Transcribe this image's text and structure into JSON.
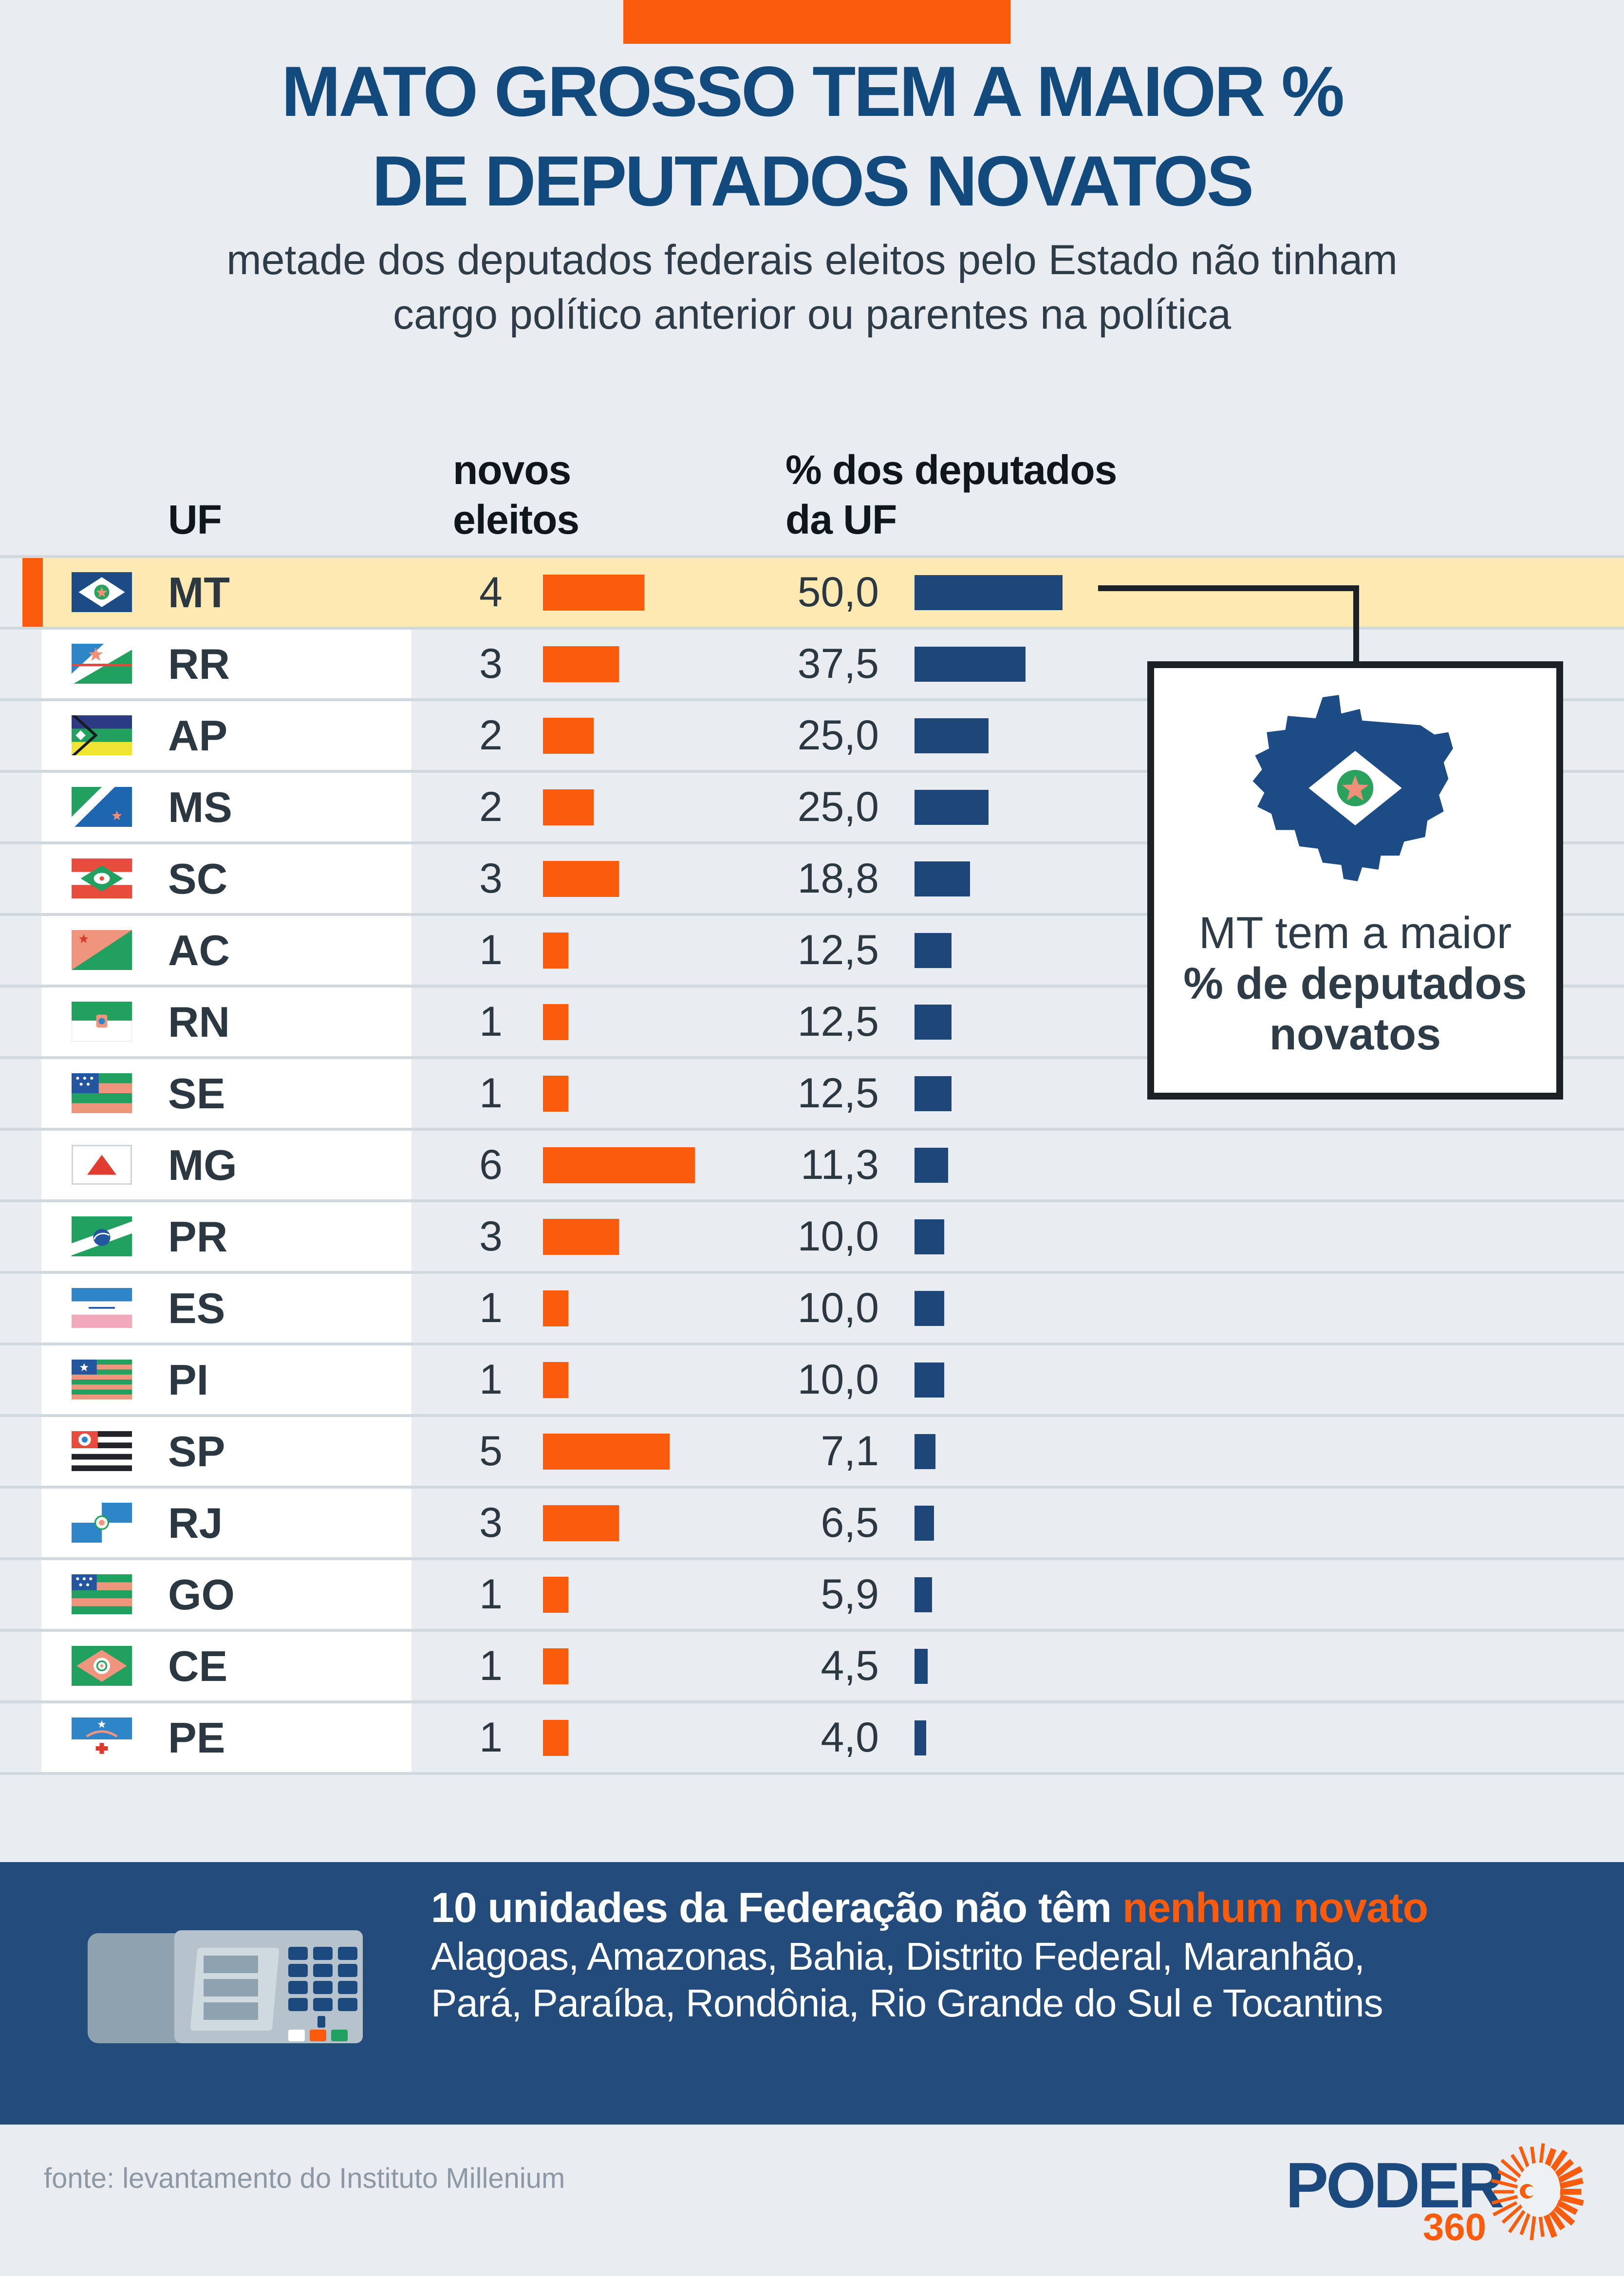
{
  "colors": {
    "accent_orange": "#fa5b0c",
    "bar_blue": "#1e4678",
    "title_blue": "#134a7d",
    "highlight_yellow": "#fee9b3",
    "banner_blue": "#234b7b",
    "divider_gray": "#d2d9de",
    "text_dark": "#2b3842"
  },
  "header": {
    "title_line1": "MATO GROSSO TEM A MAIOR %",
    "title_line2": "DE DEPUTADOS NOVATOS",
    "subtitle_line1": "metade dos deputados federais eleitos pelo Estado não tinham",
    "subtitle_line2": "cargo político anterior ou parentes na política"
  },
  "table": {
    "header": {
      "uf": "UF",
      "novos_line1": "novos",
      "novos_line2": "eleitos",
      "pct_line1": "% dos deputados",
      "pct_line2": "da UF"
    },
    "rows": [
      {
        "uf": "MT",
        "flag": "flag-mt",
        "novos": 4,
        "pct": 50.0,
        "pct_label": "50,0",
        "highlight": true
      },
      {
        "uf": "RR",
        "flag": "flag-rr",
        "novos": 3,
        "pct": 37.5,
        "pct_label": "37,5",
        "highlight": false
      },
      {
        "uf": "AP",
        "flag": "flag-ap",
        "novos": 2,
        "pct": 25.0,
        "pct_label": "25,0",
        "highlight": false
      },
      {
        "uf": "MS",
        "flag": "flag-ms",
        "novos": 2,
        "pct": 25.0,
        "pct_label": "25,0",
        "highlight": false
      },
      {
        "uf": "SC",
        "flag": "flag-sc",
        "novos": 3,
        "pct": 18.8,
        "pct_label": "18,8",
        "highlight": false
      },
      {
        "uf": "AC",
        "flag": "flag-ac",
        "novos": 1,
        "pct": 12.5,
        "pct_label": "12,5",
        "highlight": false
      },
      {
        "uf": "RN",
        "flag": "flag-rn",
        "novos": 1,
        "pct": 12.5,
        "pct_label": "12,5",
        "highlight": false
      },
      {
        "uf": "SE",
        "flag": "flag-se",
        "novos": 1,
        "pct": 12.5,
        "pct_label": "12,5",
        "highlight": false
      },
      {
        "uf": "MG",
        "flag": "flag-mg",
        "novos": 6,
        "pct": 11.3,
        "pct_label": "11,3",
        "highlight": false
      },
      {
        "uf": "PR",
        "flag": "flag-pr",
        "novos": 3,
        "pct": 10.0,
        "pct_label": "10,0",
        "highlight": false
      },
      {
        "uf": "ES",
        "flag": "flag-es",
        "novos": 1,
        "pct": 10.0,
        "pct_label": "10,0",
        "highlight": false
      },
      {
        "uf": "PI",
        "flag": "flag-pi",
        "novos": 1,
        "pct": 10.0,
        "pct_label": "10,0",
        "highlight": false
      },
      {
        "uf": "SP",
        "flag": "flag-sp",
        "novos": 5,
        "pct": 7.1,
        "pct_label": "7,1",
        "highlight": false
      },
      {
        "uf": "RJ",
        "flag": "flag-rj",
        "novos": 3,
        "pct": 6.5,
        "pct_label": "6,5",
        "highlight": false
      },
      {
        "uf": "GO",
        "flag": "flag-go",
        "novos": 1,
        "pct": 5.9,
        "pct_label": "5,9",
        "highlight": false
      },
      {
        "uf": "CE",
        "flag": "flag-ce",
        "novos": 1,
        "pct": 4.5,
        "pct_label": "4,5",
        "highlight": false
      },
      {
        "uf": "PE",
        "flag": "flag-pe",
        "novos": 1,
        "pct": 4.0,
        "pct_label": "4,0",
        "highlight": false
      }
    ]
  },
  "callout": {
    "icon": "mt-state-map-icon",
    "line1": "MT tem a maior",
    "line2": "% de deputados",
    "line3": "novatos"
  },
  "banner": {
    "icon": "voting-machine-icon",
    "headline_white": "10 unidades da Federação não têm ",
    "headline_orange": "nenhum novato",
    "line2": "Alagoas, Amazonas, Bahia, Distrito Federal, Maranhão,",
    "line3": "Pará, Paraíba, Rondônia, Rio Grande do Sul e Tocantins"
  },
  "footer": {
    "source": "fonte: levantamento do Instituto Millenium",
    "logo_text": "PODER",
    "logo_number": "360",
    "logo_icon": "sunburst-icon"
  },
  "chart_data": {
    "type": "bar",
    "orientation": "horizontal",
    "title": "MATO GROSSO TEM A MAIOR % DE DEPUTADOS NOVATOS",
    "subtitle": "metade dos deputados federais eleitos pelo Estado não tinham cargo político anterior ou parentes na política",
    "categories": [
      "MT",
      "RR",
      "AP",
      "MS",
      "SC",
      "AC",
      "RN",
      "SE",
      "MG",
      "PR",
      "ES",
      "PI",
      "SP",
      "RJ",
      "GO",
      "CE",
      "PE"
    ],
    "series": [
      {
        "name": "novos eleitos",
        "values": [
          4,
          3,
          2,
          2,
          3,
          1,
          1,
          1,
          6,
          3,
          1,
          1,
          5,
          3,
          1,
          1,
          1
        ],
        "color": "#fa5b0c"
      },
      {
        "name": "% dos deputados da UF",
        "values": [
          50.0,
          37.5,
          25.0,
          25.0,
          18.8,
          12.5,
          12.5,
          12.5,
          11.3,
          10.0,
          10.0,
          10.0,
          7.1,
          6.5,
          5.9,
          4.5,
          4.0
        ],
        "color": "#1e4678"
      }
    ],
    "highlighted_category": "MT",
    "annotation": "MT tem a maior % de deputados novatos",
    "footnote": "10 unidades da Federação não têm nenhum novato: Alagoas, Amazonas, Bahia, Distrito Federal, Maranhão, Pará, Paraíba, Rondônia, Rio Grande do Sul e Tocantins",
    "source": "fonte: levantamento do Instituto Millenium",
    "legend_position": "table-columns",
    "grid": false
  }
}
